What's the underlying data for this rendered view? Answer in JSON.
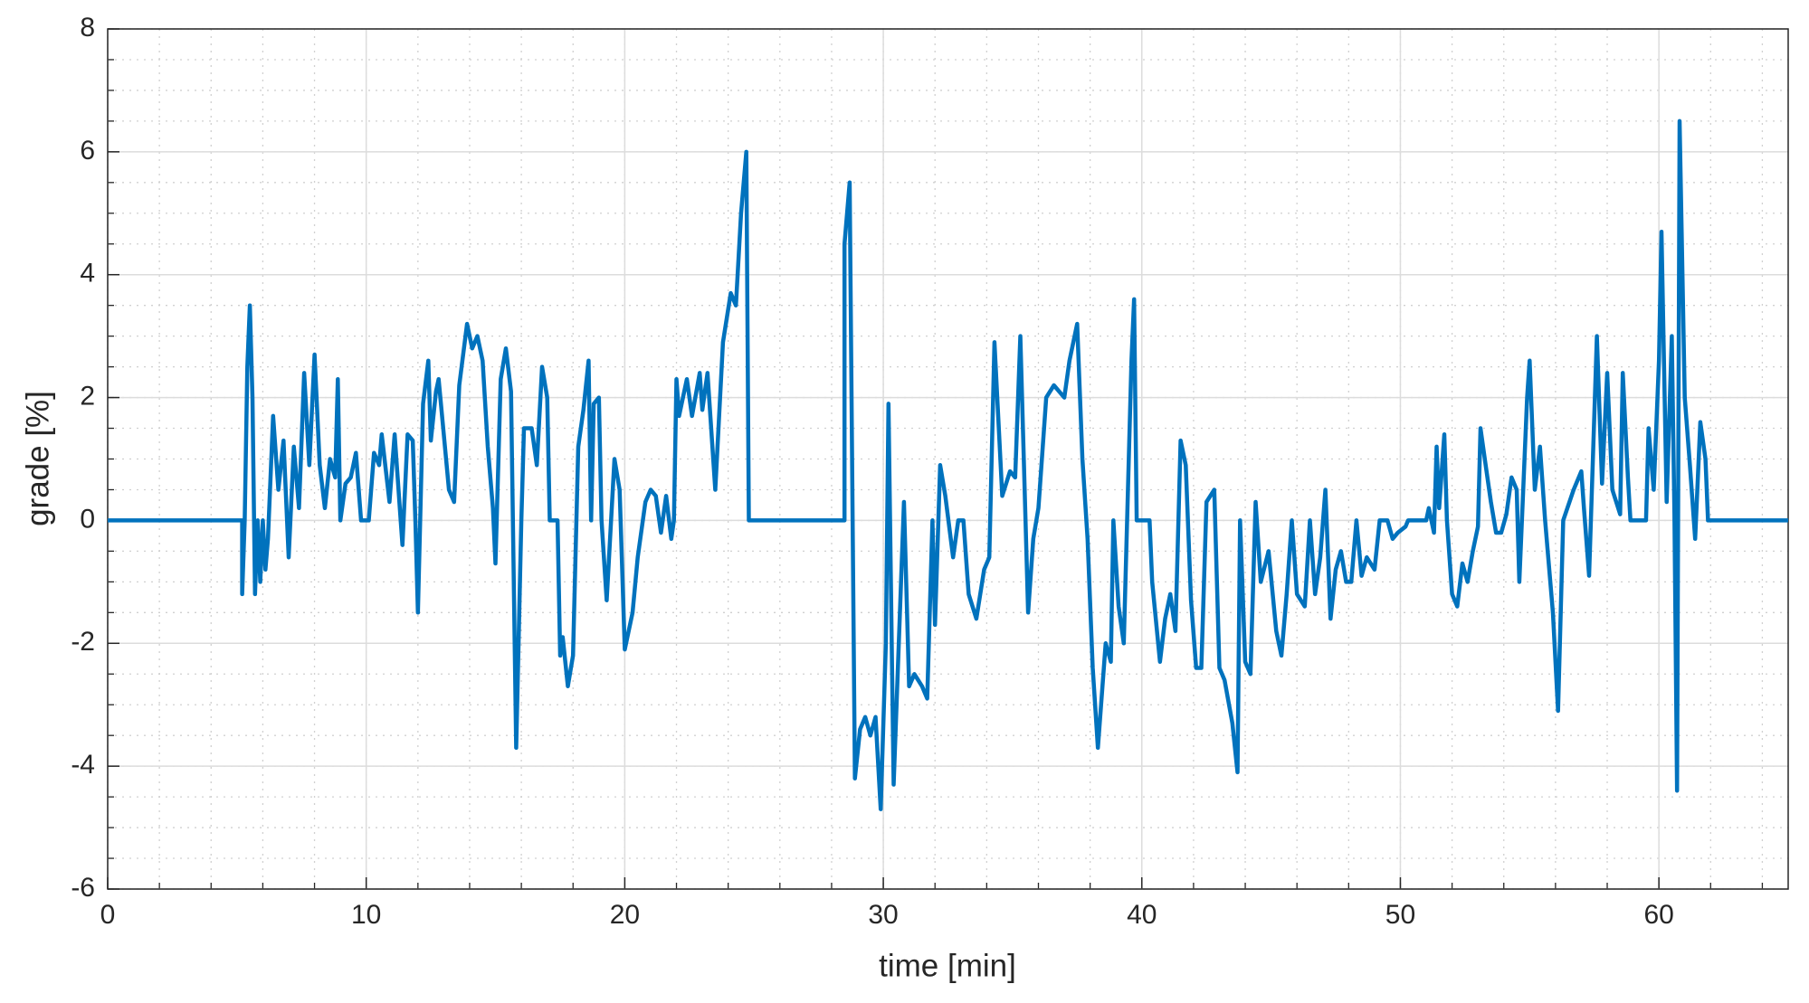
{
  "chart_data": {
    "type": "line",
    "xlabel": "time [min]",
    "ylabel": "grade [%]",
    "xlim": [
      0,
      65
    ],
    "ylim": [
      -6,
      8
    ],
    "xticks": [
      0,
      10,
      20,
      30,
      40,
      50,
      60
    ],
    "yticks": [
      -6,
      -4,
      -2,
      0,
      2,
      4,
      6,
      8
    ],
    "xminorticks": [
      0,
      2,
      4,
      6,
      8,
      10,
      12,
      14,
      16,
      18,
      20,
      22,
      24,
      26,
      28,
      30,
      32,
      34,
      36,
      38,
      40,
      42,
      44,
      46,
      48,
      50,
      52,
      54,
      56,
      58,
      60,
      62,
      64
    ],
    "yminorticks": [
      -6,
      -5.5,
      -5,
      -4.5,
      -4,
      -3.5,
      -3,
      -2.5,
      -2,
      -1.5,
      -1,
      -0.5,
      0,
      0.5,
      1,
      1.5,
      2,
      2.5,
      3,
      3.5,
      4,
      4.5,
      5,
      5.5,
      6,
      6.5,
      7,
      7.5,
      8
    ],
    "grid": true,
    "minor_grid": true,
    "series": [
      {
        "color": "#0072bd",
        "x": [
          0,
          5.2,
          5.2,
          5.3,
          5.4,
          5.5,
          5.6,
          5.7,
          5.8,
          5.9,
          6.0,
          6.1,
          6.2,
          6.4,
          6.6,
          6.8,
          7.0,
          7.2,
          7.4,
          7.6,
          7.8,
          8.0,
          8.2,
          8.4,
          8.6,
          8.8,
          8.9,
          9.0,
          9.2,
          9.4,
          9.6,
          9.8,
          10.1,
          10.3,
          10.5,
          10.6,
          10.9,
          11.1,
          11.3,
          11.4,
          11.6,
          11.8,
          11.9,
          12.0,
          12.2,
          12.4,
          12.5,
          12.7,
          12.8,
          13.0,
          13.2,
          13.4,
          13.6,
          13.9,
          14.1,
          14.3,
          14.5,
          14.7,
          14.9,
          15.0,
          15.2,
          15.4,
          15.6,
          15.8,
          16.0,
          16.1,
          16.4,
          16.6,
          16.8,
          17.0,
          17.1,
          17.4,
          17.5,
          17.6,
          17.8,
          18.0,
          18.2,
          18.4,
          18.6,
          18.7,
          18.8,
          19.0,
          19.1,
          19.3,
          19.6,
          19.8,
          20.0,
          20.3,
          20.5,
          20.8,
          21.0,
          21.2,
          21.4,
          21.6,
          21.8,
          21.9,
          22.0,
          22.1,
          22.4,
          22.6,
          22.9,
          23.0,
          23.2,
          23.5,
          23.8,
          24.1,
          24.3,
          24.5,
          24.7,
          24.8,
          28.5,
          28.5,
          28.7,
          28.9,
          29.1,
          29.3,
          29.5,
          29.7,
          29.9,
          30.1,
          30.2,
          30.4,
          30.6,
          30.8,
          31.0,
          31.2,
          31.5,
          31.7,
          31.9,
          32.0,
          32.2,
          32.4,
          32.7,
          32.9,
          33.1,
          33.3,
          33.6,
          33.9,
          34.1,
          34.3,
          34.6,
          34.9,
          35.1,
          35.3,
          35.6,
          35.8,
          36.0,
          36.3,
          36.6,
          37.0,
          37.2,
          37.5,
          37.7,
          37.9,
          38.1,
          38.3,
          38.6,
          38.8,
          38.9,
          39.1,
          39.3,
          39.6,
          39.7,
          39.8,
          40.3,
          40.4,
          40.7,
          40.9,
          41.1,
          41.3,
          41.5,
          41.7,
          41.9,
          42.1,
          42.3,
          42.5,
          42.8,
          43.0,
          43.2,
          43.5,
          43.7,
          43.8,
          44.0,
          44.2,
          44.4,
          44.6,
          44.9,
          45.2,
          45.4,
          45.6,
          45.8,
          46.0,
          46.3,
          46.5,
          46.7,
          46.9,
          47.1,
          47.3,
          47.5,
          47.7,
          47.9,
          48.1,
          48.3,
          48.5,
          48.7,
          49.0,
          49.2,
          49.5,
          49.7,
          49.9,
          50.2,
          50.3,
          51.0,
          51.1,
          51.3,
          51.4,
          51.5,
          51.7,
          51.8,
          52.0,
          52.2,
          52.4,
          52.6,
          52.8,
          53.0,
          53.1,
          53.3,
          53.5,
          53.7,
          53.9,
          54.1,
          54.3,
          54.5,
          54.6,
          54.9,
          55.0,
          55.2,
          55.4,
          55.6,
          55.9,
          56.1,
          56.3,
          56.7,
          57.0,
          57.1,
          57.3,
          57.6,
          57.8,
          58.0,
          58.2,
          58.5,
          58.6,
          58.8,
          58.9,
          59.5,
          59.6,
          59.8,
          60.0,
          60.1,
          60.3,
          60.5,
          60.6,
          60.7,
          60.8,
          61.0,
          61.2,
          61.4,
          61.6,
          61.8,
          61.9,
          65
        ],
        "values": [
          0,
          0,
          -1.2,
          0,
          2.5,
          3.5,
          2.0,
          -1.2,
          0,
          -1.0,
          0,
          -0.8,
          -0.3,
          1.7,
          0.5,
          1.3,
          -0.6,
          1.2,
          0.2,
          2.4,
          0.9,
          2.7,
          0.9,
          0.2,
          1.0,
          0.7,
          2.3,
          0,
          0.6,
          0.7,
          1.1,
          0,
          0,
          1.1,
          0.9,
          1.4,
          0.3,
          1.4,
          0.2,
          -0.4,
          1.4,
          1.3,
          0,
          -1.5,
          1.9,
          2.6,
          1.3,
          2.1,
          2.3,
          1.4,
          0.5,
          0.3,
          2.2,
          3.2,
          2.8,
          3.0,
          2.6,
          1.2,
          0.2,
          -0.7,
          2.3,
          2.8,
          2.1,
          -3.7,
          0,
          1.5,
          1.5,
          0.9,
          2.5,
          2.0,
          0,
          0,
          -2.2,
          -1.9,
          -2.7,
          -2.2,
          1.2,
          1.8,
          2.6,
          0,
          1.9,
          2.0,
          0,
          -1.3,
          1.0,
          0.5,
          -2.1,
          -1.5,
          -0.6,
          0.3,
          0.5,
          0.4,
          -0.2,
          0.4,
          -0.3,
          0,
          2.3,
          1.7,
          2.3,
          1.7,
          2.4,
          1.8,
          2.4,
          0.5,
          2.9,
          3.7,
          3.5,
          5.0,
          6.0,
          0,
          0,
          4.5,
          5.5,
          -4.2,
          -3.4,
          -3.2,
          -3.5,
          -3.2,
          -4.7,
          -2.0,
          1.9,
          -4.3,
          -2.0,
          0.3,
          -2.7,
          -2.5,
          -2.7,
          -2.9,
          0,
          -1.7,
          0.9,
          0.4,
          -0.6,
          0,
          0,
          -1.2,
          -1.6,
          -0.8,
          -0.6,
          2.9,
          0.4,
          0.8,
          0.7,
          3.0,
          -1.5,
          -0.3,
          0.2,
          2.0,
          2.2,
          2.0,
          2.6,
          3.2,
          1.0,
          -0.3,
          -2.4,
          -3.7,
          -2.0,
          -2.3,
          0,
          -1.4,
          -2.0,
          2.6,
          3.6,
          0,
          0,
          -1.0,
          -2.3,
          -1.6,
          -1.2,
          -1.8,
          1.3,
          0.9,
          -1.3,
          -2.4,
          -2.4,
          0.3,
          0.5,
          -2.4,
          -2.6,
          -3.3,
          -4.1,
          0,
          -2.3,
          -2.5,
          0.3,
          -1.0,
          -0.5,
          -1.8,
          -2.2,
          -1.2,
          0,
          -1.2,
          -1.4,
          0,
          -1.2,
          -0.6,
          0.5,
          -1.6,
          -0.8,
          -0.5,
          -1.0,
          -1.0,
          0,
          -0.9,
          -0.6,
          -0.8,
          0,
          0,
          -0.3,
          -0.2,
          -0.1,
          0,
          0,
          0.2,
          -0.2,
          1.2,
          0.2,
          1.4,
          0,
          -1.2,
          -1.4,
          -0.7,
          -1.0,
          -0.5,
          -0.1,
          1.5,
          0.9,
          0.3,
          -0.2,
          -0.2,
          0.1,
          0.7,
          0.5,
          -1.0,
          2.0,
          2.6,
          0.5,
          1.2,
          0,
          -1.5,
          -3.1,
          0,
          0.5,
          0.8,
          0.2,
          -0.9,
          3.0,
          0.6,
          2.4,
          0.5,
          0.1,
          2.4,
          0.7,
          0,
          0,
          1.5,
          0.5,
          2.6,
          4.7,
          0.3,
          3.0,
          0.1,
          -4.4,
          6.5,
          2.0,
          0.9,
          -0.3,
          1.6,
          1.0,
          0,
          0
        ]
      }
    ]
  }
}
